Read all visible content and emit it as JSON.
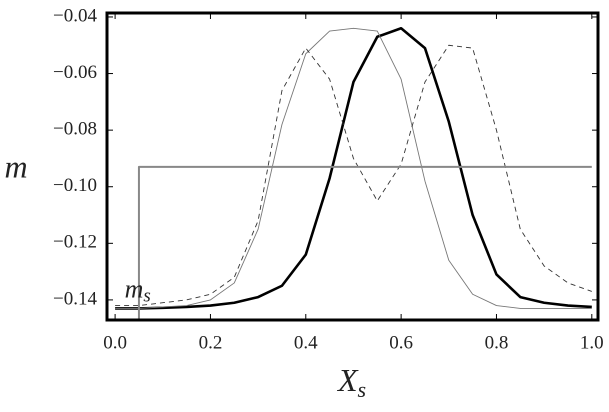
{
  "chart_data": {
    "type": "line",
    "xlabel": "X",
    "xlabel_sub": "s",
    "ylabel": "m",
    "annotation": {
      "text": "m",
      "sub": "s",
      "x": 0.02,
      "y": -0.137
    },
    "x": [
      0,
      0.05,
      0.1,
      0.15,
      0.2,
      0.25,
      0.3,
      0.35,
      0.4,
      0.45,
      0.5,
      0.55,
      0.6,
      0.65,
      0.7,
      0.75,
      0.8,
      0.85,
      0.9,
      0.95,
      1.0
    ],
    "series": [
      {
        "color": "#000000",
        "width": 2.6,
        "dash": "none",
        "values": [
          -0.143,
          -0.143,
          -0.1428,
          -0.1425,
          -0.142,
          -0.141,
          -0.139,
          -0.135,
          -0.124,
          -0.097,
          -0.063,
          -0.047,
          -0.044,
          -0.051,
          -0.077,
          -0.11,
          -0.131,
          -0.139,
          -0.141,
          -0.142,
          -0.1425
        ]
      },
      {
        "color": "#777777",
        "width": 0.9,
        "dash": "none",
        "values": [
          -0.143,
          -0.143,
          -0.1425,
          -0.142,
          -0.14,
          -0.134,
          -0.115,
          -0.078,
          -0.053,
          -0.045,
          -0.044,
          -0.045,
          -0.062,
          -0.098,
          -0.126,
          -0.138,
          -0.142,
          -0.143,
          -0.143,
          -0.143,
          -0.143
        ]
      },
      {
        "color": "#333333",
        "width": 0.9,
        "dash": "5,4",
        "values": [
          -0.142,
          -0.142,
          -0.141,
          -0.14,
          -0.138,
          -0.132,
          -0.112,
          -0.066,
          -0.051,
          -0.062,
          -0.09,
          -0.105,
          -0.092,
          -0.063,
          -0.05,
          -0.051,
          -0.08,
          -0.115,
          -0.128,
          -0.134,
          -0.137
        ]
      },
      {
        "color": "#888888",
        "width": 2,
        "dash": "none",
        "x": [
          0.05,
          0.05,
          1.0
        ],
        "values": [
          -0.1471,
          -0.093,
          -0.093
        ]
      }
    ],
    "xlim": [
      -0.017,
      1.013
    ],
    "ylim": [
      -0.1471,
      -0.0386
    ],
    "xticks": [
      {
        "value": 0,
        "label": "0.0"
      },
      0.2,
      0.4,
      0.6,
      0.8,
      {
        "value": 1,
        "label": "1.0"
      }
    ],
    "yticks": [
      {
        "value": -0.04,
        "label": "−0.04"
      },
      {
        "value": -0.06,
        "label": "−0.06"
      },
      {
        "value": -0.08,
        "label": "−0.08"
      },
      {
        "value": -0.1,
        "label": "−0.10"
      },
      {
        "value": -0.12,
        "label": "−0.12"
      },
      {
        "value": -0.14,
        "label": "−0.14"
      }
    ]
  }
}
